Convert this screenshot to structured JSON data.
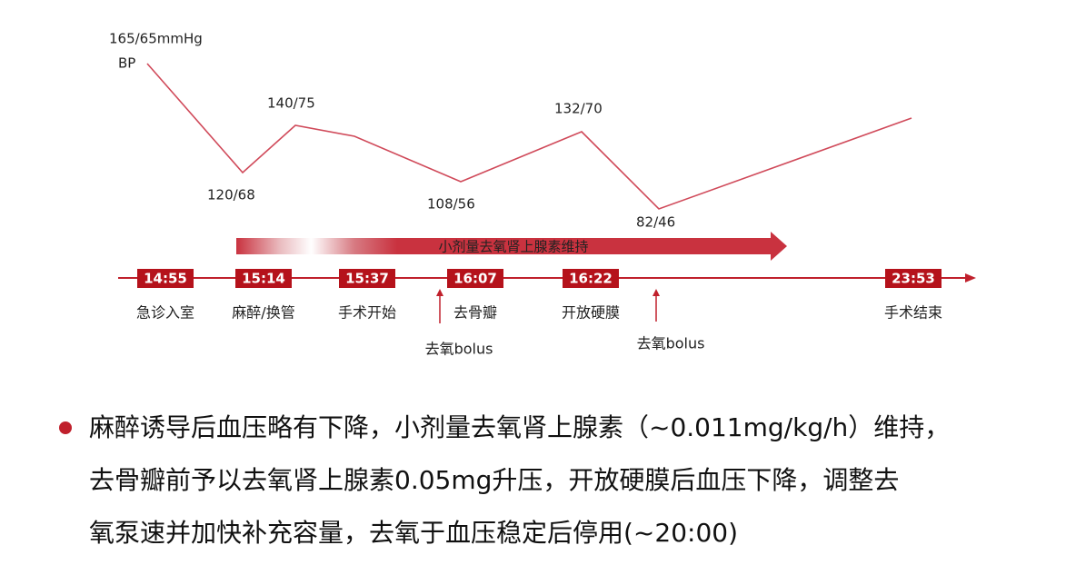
{
  "bp_curve": {
    "label": "BP",
    "points": [
      {
        "label": "165/65mmHg"
      },
      {
        "label": "120/68"
      },
      {
        "label": "140/75"
      },
      {
        "label": "108/56"
      },
      {
        "label": "132/70"
      },
      {
        "label": "82/46"
      }
    ]
  },
  "infusion": {
    "label": "小剂量去氧肾上腺素维持"
  },
  "timeline": {
    "events": [
      {
        "time": "14:55",
        "label": "急诊入室"
      },
      {
        "time": "15:14",
        "label": "麻醉/换管"
      },
      {
        "time": "15:37",
        "label": "手术开始"
      },
      {
        "time": "16:07",
        "label": "去骨瓣"
      },
      {
        "time": "16:22",
        "label": "开放硬膜"
      },
      {
        "time": "23:53",
        "label": "手术结束"
      }
    ],
    "doses": [
      {
        "label": "去氧bolus"
      },
      {
        "label": "去氧bolus"
      }
    ]
  },
  "note": {
    "lines": [
      "麻醉诱导后血压略有下降，小剂量去氧肾上腺素（~0.011mg/kg/h）维持，",
      "去骨瓣前予以去氧肾上腺素0.05mg升压，开放硬膜后血压下降，调整去",
      "氧泵速并加快补充容量，去氧于血压稳定后停用(~20:00)"
    ]
  }
}
